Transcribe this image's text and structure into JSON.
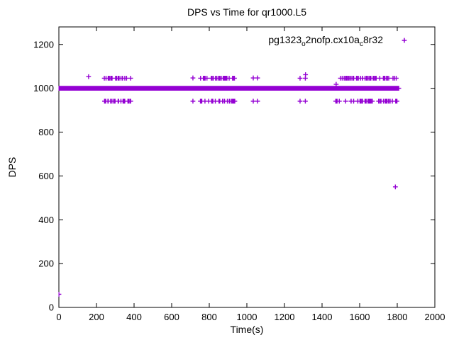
{
  "chart_data": {
    "type": "scatter",
    "title": "DPS vs Time for qr1000.L5",
    "xlabel": "Time(s)",
    "ylabel": "DPS",
    "xlim": [
      0,
      2000
    ],
    "ylim": [
      0,
      1280
    ],
    "xticks": [
      0,
      200,
      400,
      600,
      800,
      1000,
      1200,
      1400,
      1600,
      1800,
      2000
    ],
    "yticks": [
      0,
      200,
      400,
      600,
      800,
      1000,
      1200
    ],
    "grid": false,
    "legend": {
      "position": "top-right-inside",
      "plain": "pg1323_o2nofp.cx10a_c8r32",
      "parts": [
        {
          "t": "pg1323",
          "sub": false
        },
        {
          "t": "o",
          "sub": true
        },
        {
          "t": "2nofp.cx10a",
          "sub": false
        },
        {
          "t": "c",
          "sub": true
        },
        {
          "t": "8r32",
          "sub": false
        }
      ]
    },
    "marker": "plus",
    "series_color": "#9400D3",
    "axis_color": "#000000",
    "series": [
      {
        "name": "pg1323_o2nofp.cx10a_c8r32",
        "steady_band": {
          "t_start": 0,
          "t_end": 1810,
          "dps": 1000
        },
        "oscillation_clusters": [
          {
            "t_start": 240,
            "t_end": 385,
            "high_dps": 1046,
            "low_dps": 941
          },
          {
            "t_start": 752,
            "t_end": 940,
            "high_dps": 1046,
            "low_dps": 941
          },
          {
            "t_start": 1472,
            "t_end": 1800,
            "high_dps": 1046,
            "low_dps": 941
          }
        ],
        "isolated_points": [
          [
            0,
            60
          ],
          [
            158,
            1053
          ],
          [
            713,
            1047
          ],
          [
            713,
            941
          ],
          [
            1034,
            1047
          ],
          [
            1057,
            1047
          ],
          [
            1034,
            941
          ],
          [
            1057,
            941
          ],
          [
            1283,
            1046
          ],
          [
            1311,
            1046
          ],
          [
            1283,
            941
          ],
          [
            1311,
            941
          ],
          [
            1312,
            1062
          ],
          [
            1475,
            1018
          ],
          [
            1790,
            550
          ]
        ]
      }
    ]
  }
}
